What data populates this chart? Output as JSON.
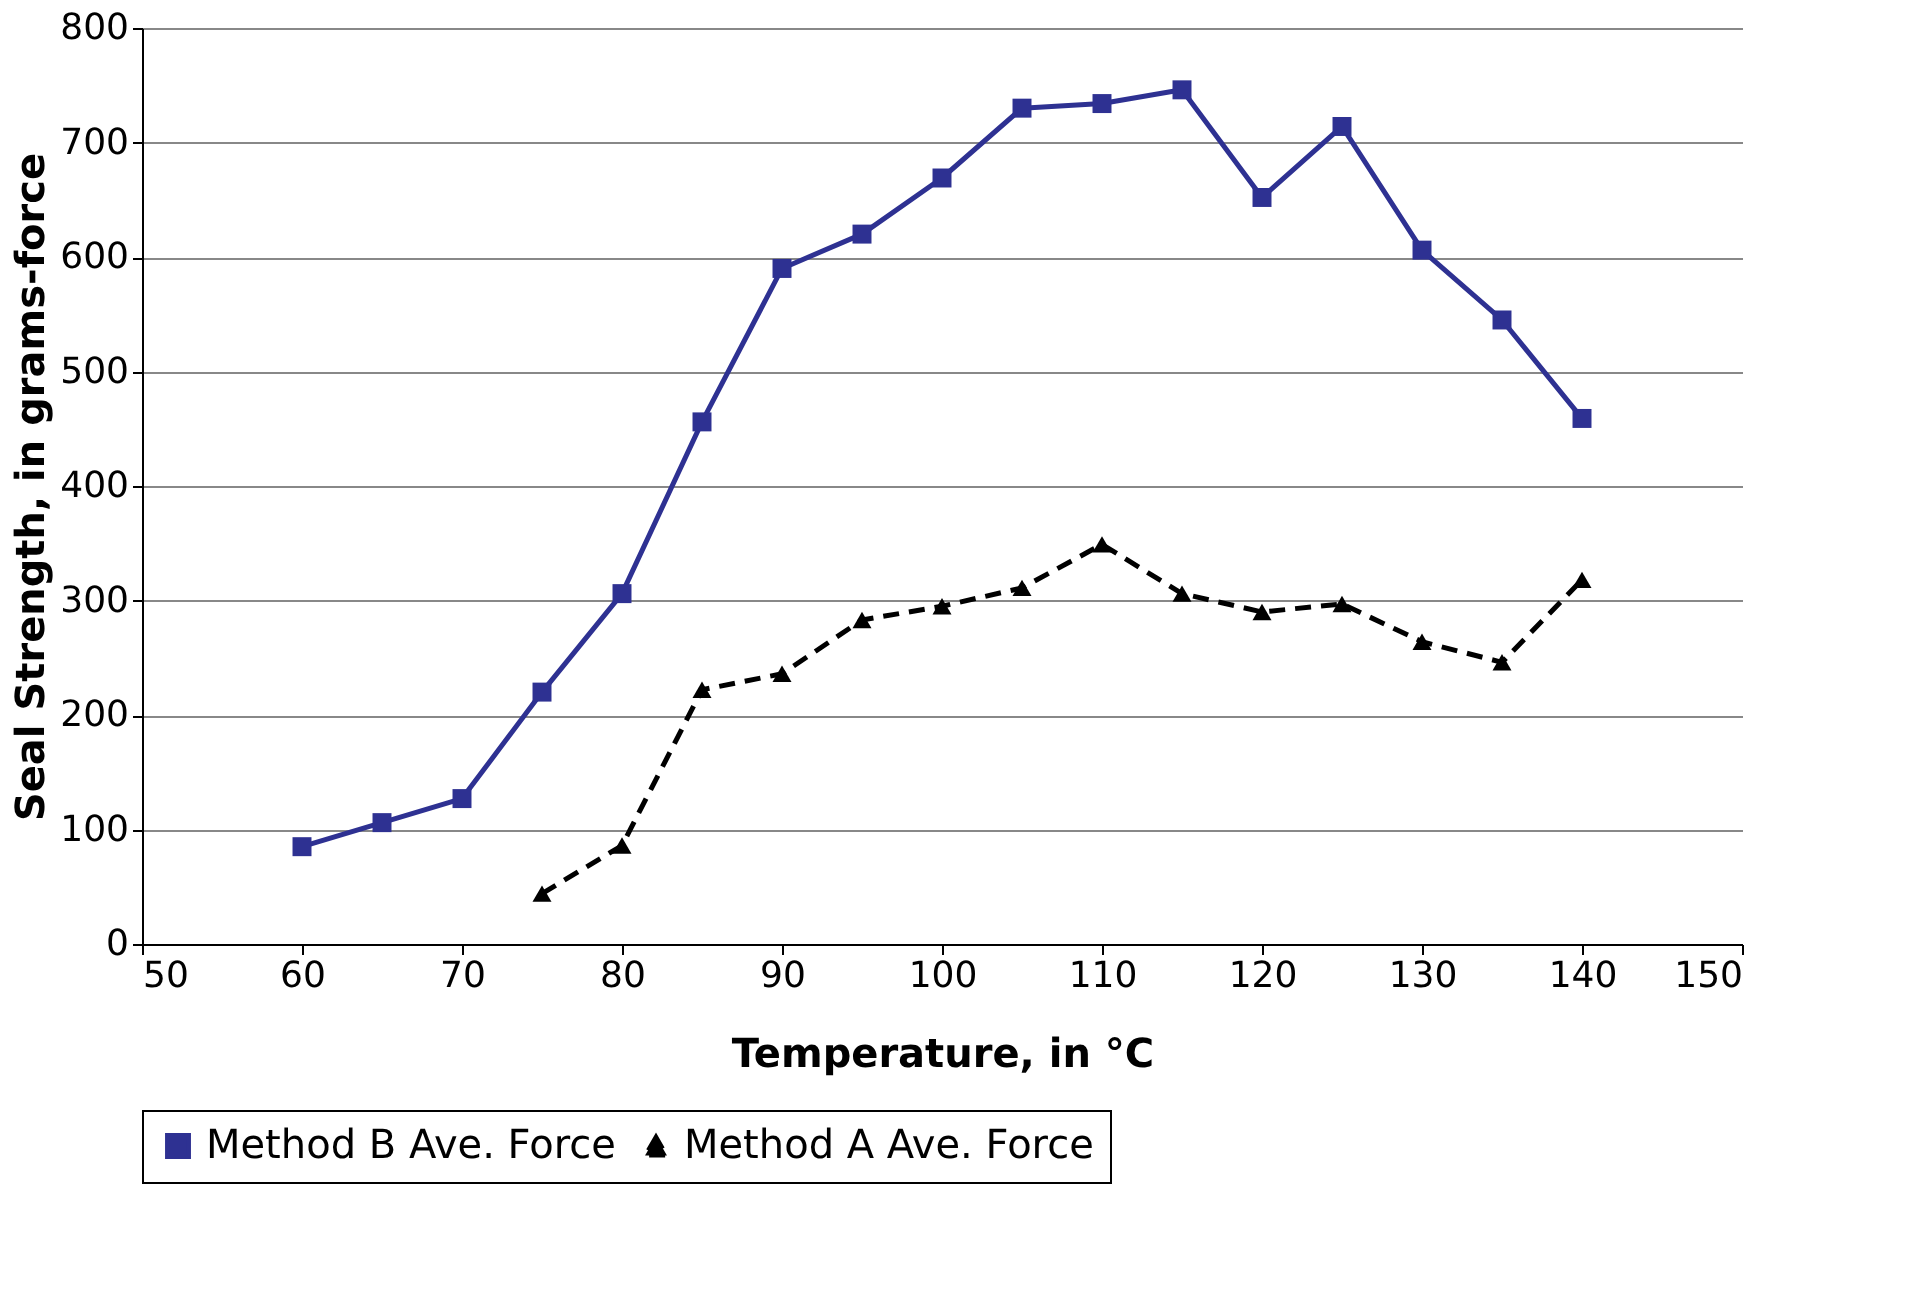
{
  "chart_data": {
    "type": "line",
    "xlabel": "Temperature, in °C",
    "ylabel": "Seal Strength, in grams-force",
    "xlim": [
      50,
      150
    ],
    "xticks": [
      50,
      60,
      70,
      80,
      90,
      100,
      110,
      120,
      130,
      140,
      150
    ],
    "ylim": [
      0,
      800
    ],
    "yticks": [
      0,
      100,
      200,
      300,
      400,
      500,
      600,
      700,
      800
    ],
    "grid": "y",
    "legend": "bottom",
    "series": [
      {
        "name": "Method B Ave. Force",
        "color": "#2e3192",
        "marker": "square",
        "line_style": "solid",
        "x": [
          60,
          65,
          70,
          75,
          80,
          85,
          90,
          95,
          100,
          105,
          110,
          115,
          120,
          125,
          130,
          135,
          140
        ],
        "values": [
          85,
          106,
          127,
          220,
          306,
          456,
          590,
          620,
          669,
          730,
          734,
          746,
          652,
          714,
          606,
          545,
          459
        ]
      },
      {
        "name": "Method A Ave. Force",
        "color": "#000000",
        "marker": "triangle",
        "line_style": "dashed",
        "x": [
          75,
          80,
          85,
          90,
          95,
          100,
          105,
          110,
          115,
          120,
          125,
          130,
          135,
          140
        ],
        "values": [
          44,
          86,
          222,
          236,
          283,
          295,
          311,
          349,
          306,
          290,
          297,
          264,
          246,
          318
        ]
      }
    ]
  }
}
